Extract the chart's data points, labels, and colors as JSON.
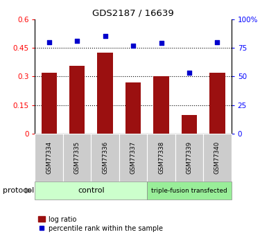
{
  "title": "GDS2187 / 16639",
  "samples": [
    "GSM77334",
    "GSM77335",
    "GSM77336",
    "GSM77337",
    "GSM77338",
    "GSM77339",
    "GSM77340"
  ],
  "log_ratio": [
    0.32,
    0.355,
    0.425,
    0.27,
    0.3,
    0.1,
    0.32
  ],
  "percentile_rank": [
    80,
    81,
    85,
    77,
    79,
    53,
    80
  ],
  "bar_color": "#9B1010",
  "dot_color": "#0000CC",
  "ylim_left": [
    0,
    0.6
  ],
  "ylim_right": [
    0,
    100
  ],
  "yticks_left": [
    0,
    0.15,
    0.3,
    0.45,
    0.6
  ],
  "ytick_labels_left": [
    "0",
    "0.15",
    "0.3",
    "0.45",
    "0.6"
  ],
  "yticks_right": [
    0,
    25,
    50,
    75,
    100
  ],
  "ytick_labels_right": [
    "0",
    "25",
    "50",
    "75",
    "100%"
  ],
  "n_control": 4,
  "n_transfected": 3,
  "control_label": "control",
  "transfected_label": "triple-fusion transfected",
  "protocol_label": "protocol",
  "legend_bar_label": "log ratio",
  "legend_dot_label": "percentile rank within the sample",
  "control_color": "#CCFFCC",
  "transfected_color": "#99EE99",
  "sample_box_color": "#CCCCCC",
  "bar_width": 0.55
}
